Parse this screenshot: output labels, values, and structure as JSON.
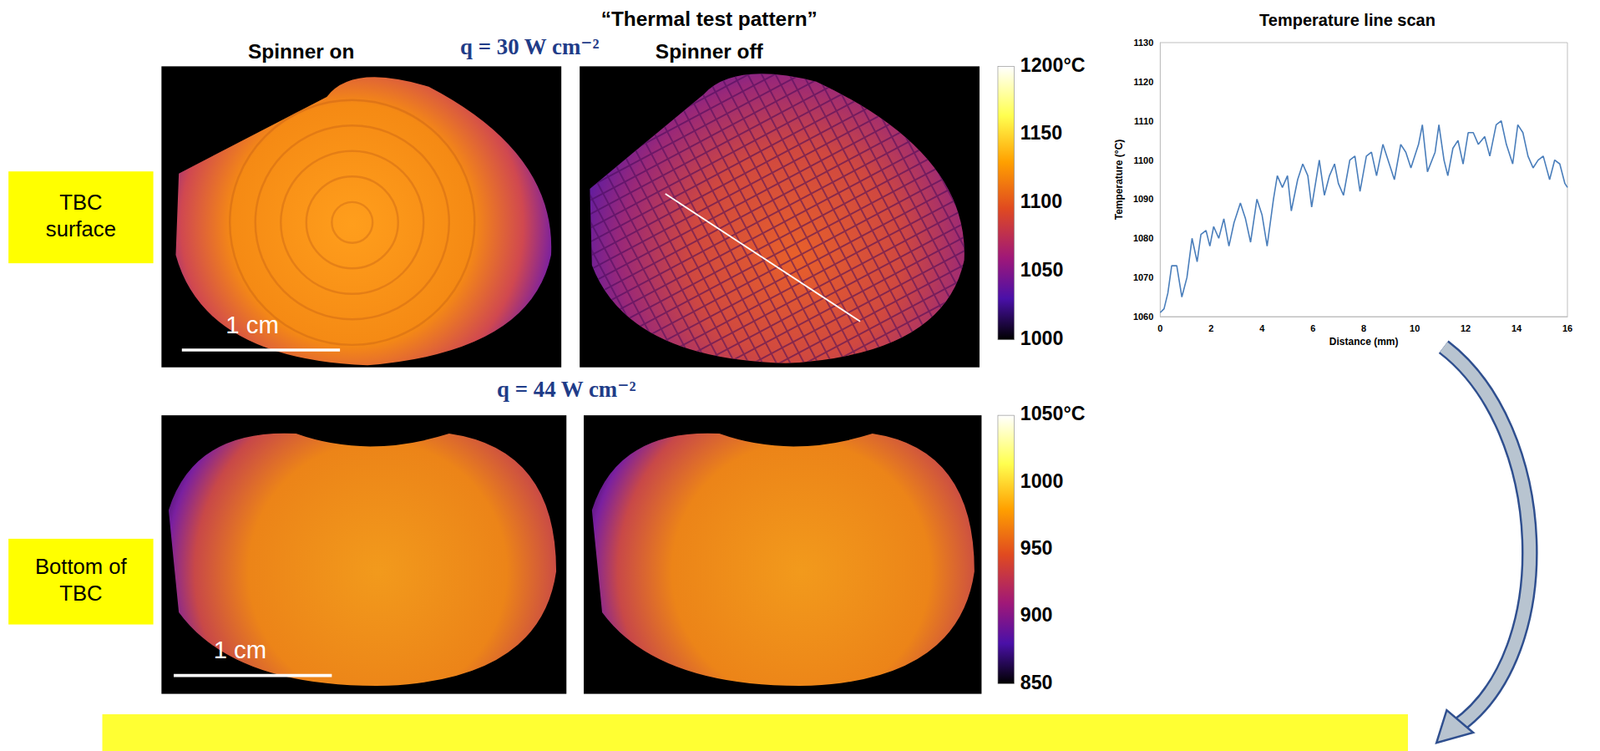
{
  "title": "“Thermal test pattern”",
  "columns": [
    "Spinner on",
    "Spinner off"
  ],
  "rows": [
    {
      "label": "TBC surface",
      "heat_flux": "q = 30 W cm⁻²",
      "scale_bar": "1 cm",
      "colorbar": {
        "range": [
          1000,
          1200
        ],
        "ticks": [
          {
            "value": 1200,
            "label": "1200°C"
          },
          1150,
          1100,
          1050,
          1000
        ]
      }
    },
    {
      "label": "Bottom of TBC",
      "heat_flux": "q = 44 W cm⁻²",
      "scale_bar": "1 cm",
      "colorbar": {
        "range": [
          850,
          1050
        ],
        "ticks": [
          {
            "value": 1050,
            "label": "1050°C"
          },
          1000,
          950,
          900,
          850
        ]
      }
    }
  ],
  "chart_data": {
    "type": "line",
    "title": "Temperature line scan",
    "x_label": "Distance (mm)",
    "y_label": "Temperature (°C)",
    "x": [
      0,
      0.15,
      0.3,
      0.45,
      0.65,
      0.85,
      1.05,
      1.25,
      1.45,
      1.6,
      1.8,
      1.95,
      2.1,
      2.3,
      2.5,
      2.7,
      2.9,
      3.15,
      3.35,
      3.55,
      3.8,
      4.0,
      4.2,
      4.45,
      4.6,
      4.8,
      5.0,
      5.15,
      5.4,
      5.6,
      5.8,
      5.95,
      6.25,
      6.45,
      6.65,
      6.85,
      7.0,
      7.2,
      7.45,
      7.65,
      7.85,
      8.1,
      8.3,
      8.5,
      8.75,
      8.95,
      9.2,
      9.45,
      9.65,
      9.85,
      10.15,
      10.3,
      10.5,
      10.8,
      10.95,
      11.15,
      11.3,
      11.5,
      11.7,
      11.9,
      12.1,
      12.3,
      12.5,
      12.75,
      12.95,
      13.2,
      13.4,
      13.6,
      13.85,
      14.05,
      14.25,
      14.45,
      14.65,
      14.85,
      15.05,
      15.3,
      15.5,
      15.7,
      15.9,
      16.0
    ],
    "values": [
      1061,
      1062,
      1066,
      1073,
      1073,
      1065,
      1070,
      1080,
      1074,
      1081,
      1082,
      1078,
      1083,
      1080,
      1085,
      1078,
      1084,
      1089,
      1085,
      1079,
      1090,
      1086,
      1078,
      1090,
      1096,
      1093,
      1096,
      1087,
      1095,
      1099,
      1096,
      1088,
      1100,
      1091,
      1096,
      1099,
      1094,
      1091,
      1100,
      1101,
      1092,
      1101,
      1102,
      1096,
      1104,
      1100,
      1095,
      1104,
      1102,
      1098,
      1104,
      1109,
      1097,
      1102,
      1109,
      1100,
      1096,
      1103,
      1105,
      1099,
      1107,
      1107,
      1104,
      1106,
      1101,
      1109,
      1110,
      1104,
      1099,
      1109,
      1107,
      1101,
      1098,
      1100,
      1101,
      1095,
      1100,
      1099,
      1094,
      1093
    ],
    "color": "#4a7ebb",
    "xlim": [
      0,
      16
    ],
    "xticks": [
      0,
      2,
      4,
      6,
      8,
      10,
      12,
      14,
      16
    ],
    "ylim": [
      1060,
      1130
    ],
    "yticks": [
      1060,
      1070,
      1080,
      1090,
      1100,
      1110,
      1120,
      1130
    ],
    "grid": false
  }
}
